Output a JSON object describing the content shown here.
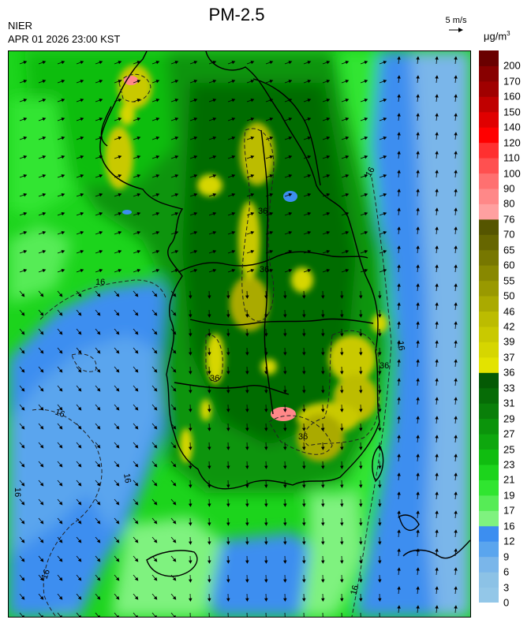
{
  "header": {
    "title": "PM-2.5",
    "agency": "NIER",
    "datetime": "APR 01 2026 23:00 KST"
  },
  "legend": {
    "reference_vector_label": "5 m/s",
    "unit_label": "μg/m",
    "unit_superscript": "3",
    "bins": [
      {
        "label": "0",
        "color": "#93c7e8"
      },
      {
        "label": "3",
        "color": "#8cc2e6"
      },
      {
        "label": "6",
        "color": "#7ab6ea"
      },
      {
        "label": "9",
        "color": "#5aa5ee"
      },
      {
        "label": "12",
        "color": "#3c8ef0"
      },
      {
        "label": "16",
        "color": "#7ff27f"
      },
      {
        "label": "17",
        "color": "#56ec56"
      },
      {
        "label": "19",
        "color": "#30e530"
      },
      {
        "label": "21",
        "color": "#1cd41c"
      },
      {
        "label": "23",
        "color": "#10bd10"
      },
      {
        "label": "25",
        "color": "#0ea70e"
      },
      {
        "label": "27",
        "color": "#0b940b"
      },
      {
        "label": "29",
        "color": "#097f09"
      },
      {
        "label": "31",
        "color": "#066c06"
      },
      {
        "label": "33",
        "color": "#045a04"
      },
      {
        "label": "36",
        "color": "#e3e300"
      },
      {
        "label": "37",
        "color": "#d6d600"
      },
      {
        "label": "39",
        "color": "#c9c900"
      },
      {
        "label": "42",
        "color": "#bcbc00"
      },
      {
        "label": "46",
        "color": "#aaaa00"
      },
      {
        "label": "50",
        "color": "#999900"
      },
      {
        "label": "55",
        "color": "#888800"
      },
      {
        "label": "60",
        "color": "#777700"
      },
      {
        "label": "65",
        "color": "#666600"
      },
      {
        "label": "70",
        "color": "#555500"
      },
      {
        "label": "76",
        "color": "#ffa0a0"
      },
      {
        "label": "80",
        "color": "#ff8888"
      },
      {
        "label": "90",
        "color": "#ff7070"
      },
      {
        "label": "100",
        "color": "#ff5050"
      },
      {
        "label": "110",
        "color": "#ff3030"
      },
      {
        "label": "120",
        "color": "#ff0000"
      },
      {
        "label": "140",
        "color": "#e00000"
      },
      {
        "label": "150",
        "color": "#c00000"
      },
      {
        "label": "160",
        "color": "#a00000"
      },
      {
        "label": "170",
        "color": "#880000"
      },
      {
        "label": "200",
        "color": "#6a0000"
      }
    ]
  },
  "map": {
    "contour_labels": [
      "16",
      "16",
      "16",
      "16",
      "16",
      "16",
      "16",
      "16",
      "36",
      "36",
      "36",
      "36",
      "36"
    ]
  }
}
